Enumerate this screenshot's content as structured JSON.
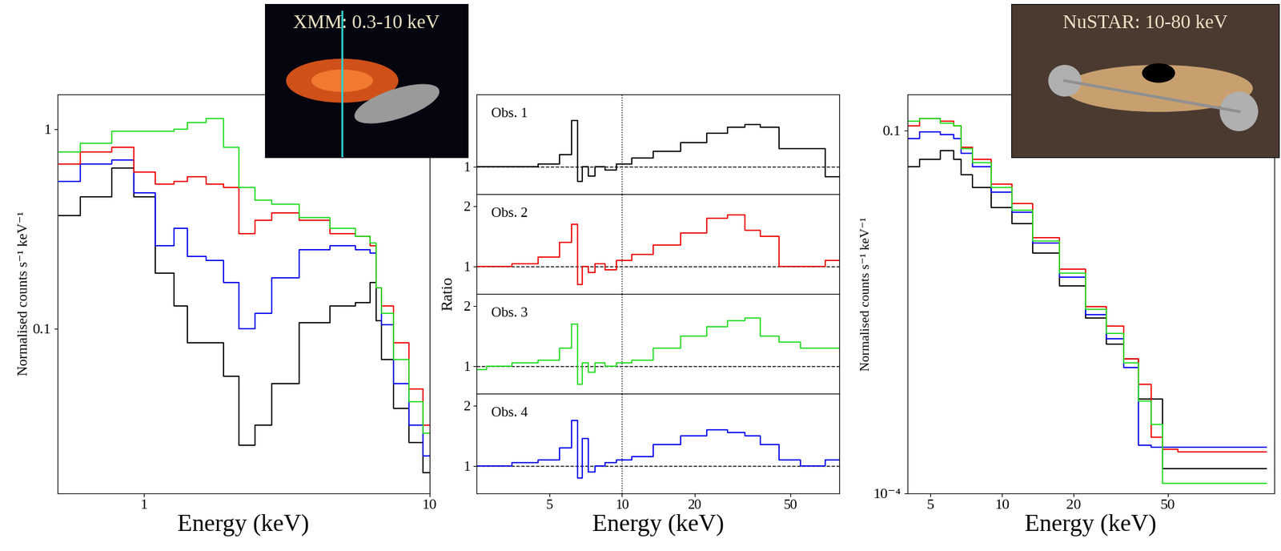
{
  "chart_data": [
    {
      "type": "line",
      "annotation": "XMM: 0.3-10 keV",
      "xlabel": "Energy (keV)",
      "ylabel": "Normalised counts s⁻¹ keV⁻¹",
      "log": true,
      "line_style": "steps",
      "xlim": [
        0.5,
        10
      ],
      "ylim": [
        0.015,
        1.5
      ],
      "xticks": [
        1,
        10
      ],
      "yticks": [
        0.1,
        1
      ],
      "x": [
        0.5,
        0.7,
        0.85,
        1.0,
        1.2,
        1.35,
        1.5,
        1.8,
        2.0,
        2.3,
        2.6,
        3.0,
        4.0,
        5.0,
        6.0,
        6.4,
        6.6,
        7.0,
        8.0,
        9.0,
        10
      ],
      "series": [
        {
          "color": "#000000",
          "values": [
            0.37,
            0.46,
            0.64,
            0.46,
            0.19,
            0.13,
            0.085,
            0.085,
            0.058,
            0.026,
            0.033,
            0.053,
            0.107,
            0.13,
            0.135,
            0.17,
            0.11,
            0.07,
            0.04,
            0.027,
            0.019
          ]
        },
        {
          "color": "#0000ee",
          "values": [
            0.55,
            0.67,
            0.7,
            0.48,
            0.26,
            0.32,
            0.23,
            0.22,
            0.17,
            0.1,
            0.12,
            0.18,
            0.25,
            0.26,
            0.25,
            0.24,
            0.16,
            0.105,
            0.053,
            0.033,
            0.023
          ]
        },
        {
          "color": "#ee0000",
          "values": [
            0.67,
            0.77,
            0.81,
            0.61,
            0.53,
            0.55,
            0.58,
            0.53,
            0.51,
            0.3,
            0.35,
            0.38,
            0.35,
            0.3,
            0.29,
            0.26,
            0.16,
            0.13,
            0.085,
            0.05,
            0.033
          ]
        },
        {
          "color": "#22dd22",
          "values": [
            0.77,
            0.85,
            0.98,
            0.98,
            0.98,
            1.0,
            1.08,
            1.13,
            0.81,
            0.51,
            0.44,
            0.42,
            0.36,
            0.32,
            0.29,
            0.27,
            0.16,
            0.12,
            0.07,
            0.043,
            0.03
          ]
        }
      ]
    },
    {
      "type": "line",
      "xlabel": "Energy (keV)",
      "ylabel": "Ratio",
      "log": "x",
      "line_style": "steps",
      "xlim": [
        2.5,
        80
      ],
      "ylim": [
        0.55,
        2.2
      ],
      "xticks": [
        5,
        10,
        20,
        50
      ],
      "hline": 1,
      "vline": 10,
      "x": [
        2.5,
        3,
        4,
        5,
        6,
        6.4,
        6.7,
        7,
        7.5,
        8,
        9,
        10,
        12,
        15,
        20,
        25,
        30,
        35,
        40,
        50,
        60,
        80
      ],
      "series": [
        {
          "name": "Obs. 1",
          "color": "#000000",
          "yticks": [
            1
          ],
          "values": [
            1.0,
            1.0,
            1.0,
            1.05,
            1.2,
            1.76,
            0.76,
            1.0,
            0.85,
            1.0,
            0.95,
            1.05,
            1.15,
            1.25,
            1.4,
            1.55,
            1.65,
            1.7,
            1.65,
            1.3,
            1.3,
            0.83
          ]
        },
        {
          "name": "Obs. 2",
          "color": "#ee0000",
          "yticks": [
            1,
            2
          ],
          "values": [
            1.0,
            1.0,
            1.05,
            1.15,
            1.4,
            1.7,
            0.7,
            1.0,
            0.9,
            1.05,
            0.95,
            1.1,
            1.2,
            1.35,
            1.55,
            1.8,
            1.85,
            1.6,
            1.5,
            1.0,
            1.0,
            1.1
          ]
        },
        {
          "name": "Obs. 3",
          "color": "#22dd22",
          "yticks": [
            1,
            2
          ],
          "values": [
            0.95,
            1.0,
            1.05,
            1.1,
            1.3,
            1.7,
            0.7,
            1.05,
            0.9,
            1.05,
            1.0,
            1.05,
            1.1,
            1.3,
            1.5,
            1.65,
            1.75,
            1.8,
            1.5,
            1.4,
            1.3,
            1.3
          ]
        },
        {
          "name": "Obs. 4",
          "color": "#0000ee",
          "yticks": [
            1,
            2
          ],
          "values": [
            1.0,
            1.0,
            1.05,
            1.1,
            1.3,
            1.75,
            0.8,
            1.45,
            0.9,
            1.0,
            1.05,
            1.1,
            1.15,
            1.35,
            1.5,
            1.6,
            1.55,
            1.5,
            1.35,
            1.1,
            1.0,
            1.1
          ]
        }
      ]
    },
    {
      "type": "line",
      "annotation": "NuSTAR: 10-80 keV",
      "xlabel": "Energy (keV)",
      "ylabel": "Normalised counts s⁻¹ keV⁻¹",
      "log": true,
      "line_style": "steps",
      "xlim": [
        4,
        140
      ],
      "ylim": [
        0.0001,
        0.2
      ],
      "xticks": [
        5,
        10,
        20,
        50
      ],
      "yticks": [
        {
          "value": 0.0001,
          "label": "10⁻⁴"
        },
        0.1
      ],
      "x": [
        4,
        5,
        6,
        6.5,
        7,
        8,
        10,
        12,
        15,
        20,
        25,
        30,
        35,
        40,
        45,
        50,
        60,
        80,
        100,
        130
      ],
      "series": [
        {
          "color": "#000000",
          "values": [
            0.05,
            0.058,
            0.068,
            0.058,
            0.043,
            0.034,
            0.023,
            0.017,
            0.0097,
            0.0052,
            0.0028,
            0.0017,
            0.0013,
            0.0006,
            0.0006,
            0.00016,
            0.00016,
            0.00016,
            0.00016,
            0.00016
          ]
        },
        {
          "color": "#0000ee",
          "values": [
            0.086,
            0.097,
            0.093,
            0.086,
            0.065,
            0.05,
            0.031,
            0.021,
            0.0117,
            0.0061,
            0.003,
            0.0019,
            0.0011,
            0.00025,
            0.00024,
            0.00024,
            0.00024,
            0.00024,
            0.00024,
            0.00024
          ]
        },
        {
          "color": "#ee0000",
          "values": [
            0.11,
            0.126,
            0.12,
            0.11,
            0.073,
            0.058,
            0.036,
            0.025,
            0.013,
            0.0071,
            0.0035,
            0.0024,
            0.0013,
            0.0008,
            0.00029,
            0.00023,
            0.00022,
            0.00022,
            0.00022,
            0.00022
          ]
        },
        {
          "color": "#22dd22",
          "values": [
            0.12,
            0.126,
            0.115,
            0.11,
            0.071,
            0.054,
            0.034,
            0.022,
            0.0122,
            0.0066,
            0.0033,
            0.0021,
            0.0012,
            0.00058,
            0.00037,
            0.00012,
            0.00012,
            0.00012,
            0.00012,
            0.00012
          ]
        }
      ]
    }
  ]
}
